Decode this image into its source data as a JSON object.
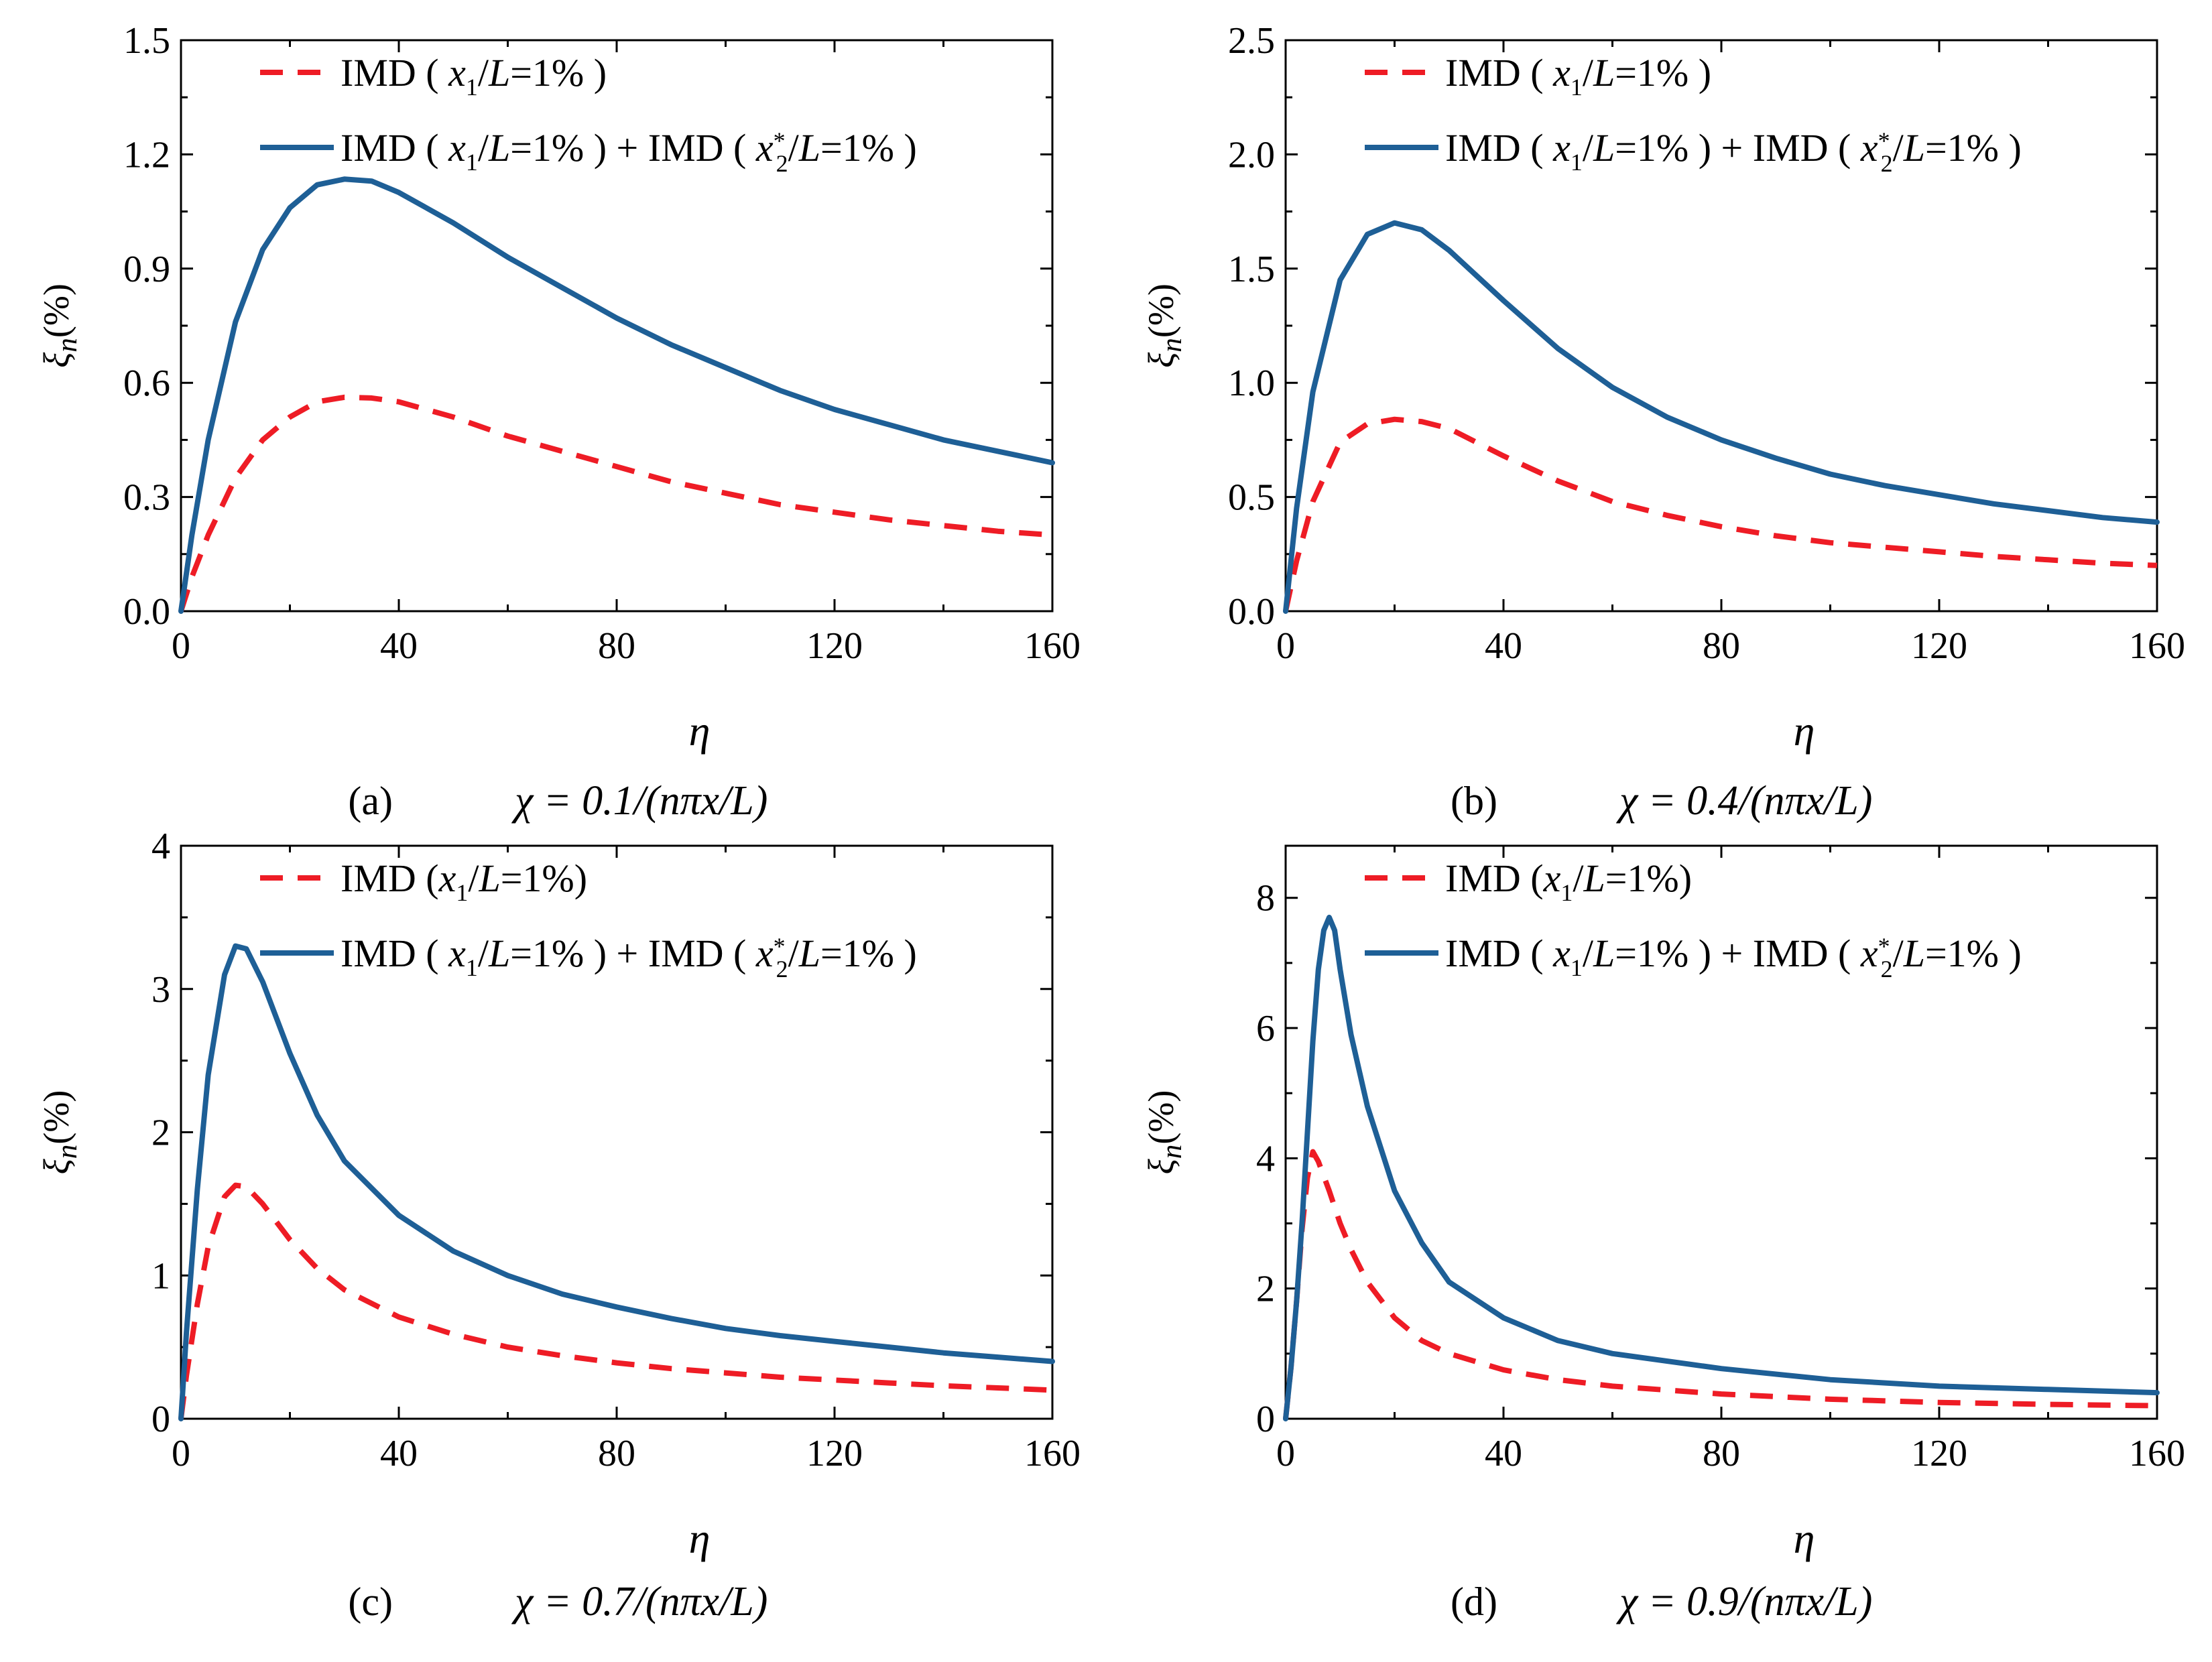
{
  "colors": {
    "dashed": "#ee1c25",
    "solid": "#1e5f96",
    "axis": "#000000"
  },
  "chart_data": [
    {
      "id": "a",
      "type": "line",
      "caption_letter": "(a)",
      "caption_formula": "χ = 0.1/(nπx/L)",
      "xlabel": "η",
      "ylabel": "ξn(%)",
      "xlim": [
        0,
        160
      ],
      "ylim": [
        0,
        1.5
      ],
      "xticks": [
        "0",
        "40",
        "80",
        "120",
        "160"
      ],
      "yticks": [
        "0.0",
        "0.3",
        "0.6",
        "0.9",
        "1.2",
        "1.5"
      ],
      "legend_position": "top-left",
      "series": [
        {
          "name": "IMD ( x1/L=1% )",
          "style": "dashed",
          "x": [
            0,
            2,
            5,
            10,
            15,
            20,
            25,
            30,
            35,
            40,
            50,
            60,
            70,
            80,
            90,
            100,
            110,
            120,
            130,
            140,
            150,
            160
          ],
          "y": [
            0,
            0.09,
            0.2,
            0.35,
            0.45,
            0.51,
            0.55,
            0.562,
            0.56,
            0.55,
            0.51,
            0.46,
            0.42,
            0.38,
            0.34,
            0.31,
            0.28,
            0.26,
            0.24,
            0.225,
            0.21,
            0.2
          ]
        },
        {
          "name": "IMD ( x1/L=1% ) + IMD ( x2*/L=1% )",
          "style": "solid",
          "x": [
            0,
            2,
            5,
            10,
            15,
            20,
            25,
            30,
            35,
            40,
            50,
            60,
            70,
            80,
            90,
            100,
            110,
            120,
            130,
            140,
            150,
            160
          ],
          "y": [
            0,
            0.2,
            0.45,
            0.76,
            0.95,
            1.06,
            1.12,
            1.135,
            1.13,
            1.1,
            1.02,
            0.93,
            0.85,
            0.77,
            0.7,
            0.64,
            0.58,
            0.53,
            0.49,
            0.45,
            0.42,
            0.39
          ]
        }
      ]
    },
    {
      "id": "b",
      "type": "line",
      "caption_letter": "(b)",
      "caption_formula": "χ = 0.4/(nπx/L)",
      "xlabel": "η",
      "ylabel": "ξn(%)",
      "xlim": [
        0,
        160
      ],
      "ylim": [
        0,
        2.5
      ],
      "xticks": [
        "0",
        "40",
        "80",
        "120",
        "160"
      ],
      "yticks": [
        "0.0",
        "0.5",
        "1.0",
        "1.5",
        "2.0",
        "2.5"
      ],
      "legend_position": "top-left",
      "series": [
        {
          "name": "IMD ( x1/L=1% )",
          "style": "dashed",
          "x": [
            0,
            2,
            5,
            10,
            15,
            20,
            25,
            30,
            40,
            50,
            60,
            70,
            80,
            90,
            100,
            110,
            120,
            130,
            140,
            150,
            160
          ],
          "y": [
            0,
            0.22,
            0.48,
            0.74,
            0.82,
            0.84,
            0.83,
            0.8,
            0.68,
            0.57,
            0.48,
            0.42,
            0.37,
            0.33,
            0.3,
            0.28,
            0.26,
            0.24,
            0.225,
            0.21,
            0.2
          ]
        },
        {
          "name": "IMD ( x1/L=1% ) + IMD ( x2*/L=1% )",
          "style": "solid",
          "x": [
            0,
            2,
            5,
            10,
            15,
            20,
            25,
            30,
            40,
            50,
            60,
            70,
            80,
            90,
            100,
            110,
            120,
            130,
            140,
            150,
            160
          ],
          "y": [
            0,
            0.45,
            0.96,
            1.45,
            1.65,
            1.7,
            1.67,
            1.58,
            1.36,
            1.15,
            0.98,
            0.85,
            0.75,
            0.67,
            0.6,
            0.55,
            0.51,
            0.47,
            0.44,
            0.41,
            0.39
          ]
        }
      ]
    },
    {
      "id": "c",
      "type": "line",
      "caption_letter": "(c)",
      "caption_formula": "χ = 0.7/(nπx/L)",
      "xlabel": "η",
      "ylabel": "ξn(%)",
      "xlim": [
        0,
        160
      ],
      "ylim": [
        0,
        4
      ],
      "xticks": [
        "0",
        "40",
        "80",
        "120",
        "160"
      ],
      "yticks": [
        "0",
        "1",
        "2",
        "3",
        "4"
      ],
      "legend_position": "top-left",
      "series": [
        {
          "name": "IMD (x1/L=1%)",
          "style": "dashed",
          "x": [
            0,
            1,
            3,
            5,
            8,
            10,
            12,
            15,
            20,
            25,
            30,
            40,
            50,
            60,
            70,
            80,
            90,
            100,
            110,
            120,
            130,
            140,
            150,
            160
          ],
          "y": [
            0,
            0.3,
            0.8,
            1.2,
            1.55,
            1.63,
            1.62,
            1.5,
            1.25,
            1.05,
            0.9,
            0.71,
            0.59,
            0.5,
            0.44,
            0.39,
            0.35,
            0.32,
            0.29,
            0.27,
            0.25,
            0.23,
            0.215,
            0.2
          ]
        },
        {
          "name": "IMD ( x1/L=1% ) + IMD ( x2*/L=1% )",
          "style": "solid",
          "x": [
            0,
            1,
            3,
            5,
            8,
            10,
            12,
            15,
            20,
            25,
            30,
            40,
            50,
            60,
            70,
            80,
            90,
            100,
            110,
            120,
            130,
            140,
            150,
            160
          ],
          "y": [
            0,
            0.6,
            1.6,
            2.4,
            3.1,
            3.3,
            3.28,
            3.05,
            2.55,
            2.12,
            1.8,
            1.42,
            1.17,
            1.0,
            0.87,
            0.78,
            0.7,
            0.63,
            0.58,
            0.54,
            0.5,
            0.46,
            0.43,
            0.4
          ]
        }
      ]
    },
    {
      "id": "d",
      "type": "line",
      "caption_letter": "(d)",
      "caption_formula": "χ = 0.9/(nπx/L)",
      "xlabel": "η",
      "ylabel": "ξn(%)",
      "xlim": [
        0,
        160
      ],
      "ylim": [
        0,
        8.8
      ],
      "xticks": [
        "0",
        "40",
        "80",
        "120",
        "160"
      ],
      "yticks": [
        "0",
        "2",
        "4",
        "6",
        "8"
      ],
      "legend_position": "top-left",
      "series": [
        {
          "name": "IMD (x1/L=1%)",
          "style": "dashed",
          "x": [
            0,
            1,
            2,
            3,
            4,
            5,
            6,
            8,
            10,
            12,
            15,
            20,
            25,
            30,
            40,
            50,
            60,
            80,
            100,
            120,
            140,
            160
          ],
          "y": [
            0,
            0.8,
            1.8,
            2.9,
            3.7,
            4.1,
            3.95,
            3.5,
            3.0,
            2.6,
            2.1,
            1.55,
            1.2,
            1.0,
            0.75,
            0.6,
            0.5,
            0.38,
            0.3,
            0.25,
            0.22,
            0.2
          ]
        },
        {
          "name": "IMD ( x1/L=1% ) + IMD ( x2*/L=1% )",
          "style": "solid",
          "x": [
            0,
            1,
            2,
            3,
            4,
            5,
            6,
            7,
            8,
            9,
            10,
            12,
            15,
            20,
            25,
            30,
            40,
            50,
            60,
            80,
            100,
            120,
            140,
            160
          ],
          "y": [
            0,
            0.8,
            1.8,
            3.0,
            4.4,
            5.8,
            6.9,
            7.5,
            7.7,
            7.5,
            6.9,
            5.9,
            4.8,
            3.5,
            2.7,
            2.1,
            1.55,
            1.2,
            1.0,
            0.77,
            0.6,
            0.5,
            0.45,
            0.4
          ]
        }
      ]
    }
  ]
}
